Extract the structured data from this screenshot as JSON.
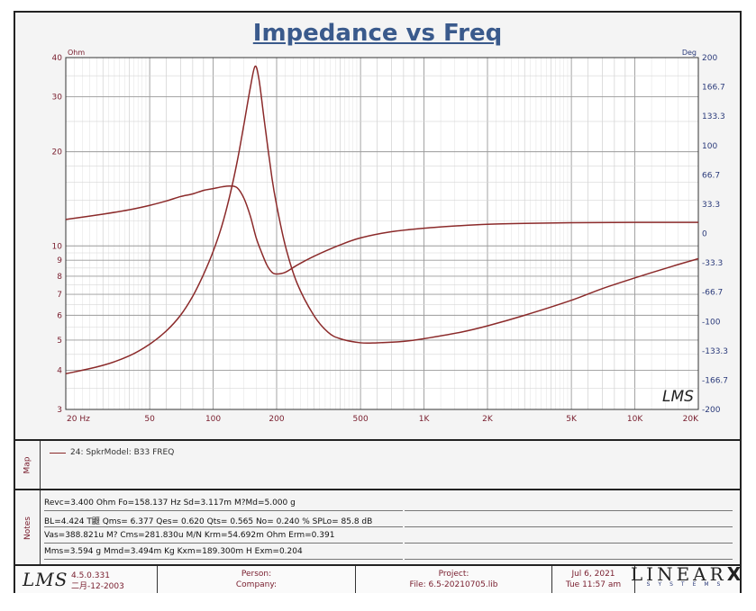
{
  "chart_data": {
    "type": "line",
    "title": "Impedance vs Freq",
    "x_scale": "log",
    "xlim": [
      20,
      20000
    ],
    "x_ticks": [
      {
        "value": 20,
        "label": "20  Hz"
      },
      {
        "value": 50,
        "label": "50"
      },
      {
        "value": 100,
        "label": "100"
      },
      {
        "value": 200,
        "label": "200"
      },
      {
        "value": 500,
        "label": "500"
      },
      {
        "value": 1000,
        "label": "1K"
      },
      {
        "value": 2000,
        "label": "2K"
      },
      {
        "value": 5000,
        "label": "5K"
      },
      {
        "value": 10000,
        "label": "10K"
      },
      {
        "value": 20000,
        "label": "20K"
      }
    ],
    "y_left": {
      "unit": "Ohm",
      "scale": "log",
      "range": [
        3,
        40
      ],
      "ticks": [
        {
          "value": 3,
          "label": "3"
        },
        {
          "value": 4,
          "label": "4"
        },
        {
          "value": 5,
          "label": "5"
        },
        {
          "value": 6,
          "label": "6"
        },
        {
          "value": 7,
          "label": "7"
        },
        {
          "value": 8,
          "label": "8"
        },
        {
          "value": 9,
          "label": "9"
        },
        {
          "value": 10,
          "label": "10"
        },
        {
          "value": 20,
          "label": "20"
        },
        {
          "value": 30,
          "label": "30"
        },
        {
          "value": 40,
          "label": "40"
        }
      ]
    },
    "y_right": {
      "unit": "Deg",
      "scale": "linear",
      "range": [
        -200,
        200
      ],
      "ticks": [
        {
          "value": 200,
          "label": "200"
        },
        {
          "value": 166.7,
          "label": "166.7"
        },
        {
          "value": 133.3,
          "label": "133.3"
        },
        {
          "value": 100,
          "label": "100"
        },
        {
          "value": 66.7,
          "label": "66.7"
        },
        {
          "value": 33.3,
          "label": "33.3"
        },
        {
          "value": 0,
          "label": "0"
        },
        {
          "value": -33.3,
          "label": "-33.3"
        },
        {
          "value": -66.7,
          "label": "-66.7"
        },
        {
          "value": -100,
          "label": "-100"
        },
        {
          "value": -133.3,
          "label": "-133.3"
        },
        {
          "value": -166.7,
          "label": "-166.7"
        },
        {
          "value": -200,
          "label": "-200"
        }
      ]
    },
    "series": [
      {
        "name": "Impedance",
        "axis": "left",
        "color": "#8b2a2a",
        "points": [
          [
            20,
            3.9
          ],
          [
            30,
            4.15
          ],
          [
            40,
            4.45
          ],
          [
            50,
            4.85
          ],
          [
            60,
            5.35
          ],
          [
            70,
            6.0
          ],
          [
            80,
            6.9
          ],
          [
            90,
            8.1
          ],
          [
            100,
            9.6
          ],
          [
            110,
            11.6
          ],
          [
            120,
            14.5
          ],
          [
            130,
            18.6
          ],
          [
            140,
            24.5
          ],
          [
            150,
            32.0
          ],
          [
            158,
            37.5
          ],
          [
            165,
            34.0
          ],
          [
            175,
            25.0
          ],
          [
            190,
            16.5
          ],
          [
            200,
            13.5
          ],
          [
            220,
            10.0
          ],
          [
            250,
            7.6
          ],
          [
            300,
            6.0
          ],
          [
            350,
            5.3
          ],
          [
            400,
            5.05
          ],
          [
            500,
            4.9
          ],
          [
            600,
            4.9
          ],
          [
            800,
            4.95
          ],
          [
            1000,
            5.05
          ],
          [
            1500,
            5.3
          ],
          [
            2000,
            5.55
          ],
          [
            3000,
            6.0
          ],
          [
            5000,
            6.7
          ],
          [
            7000,
            7.3
          ],
          [
            10000,
            7.9
          ],
          [
            15000,
            8.6
          ],
          [
            20000,
            9.1
          ]
        ]
      },
      {
        "name": "Phase",
        "axis": "right",
        "color": "#8b2a2a",
        "points": [
          [
            20,
            16
          ],
          [
            30,
            22
          ],
          [
            40,
            27
          ],
          [
            50,
            32
          ],
          [
            60,
            37
          ],
          [
            70,
            42
          ],
          [
            80,
            45
          ],
          [
            90,
            49
          ],
          [
            100,
            51
          ],
          [
            110,
            53
          ],
          [
            120,
            54
          ],
          [
            130,
            52
          ],
          [
            140,
            40
          ],
          [
            150,
            20
          ],
          [
            160,
            -5
          ],
          [
            170,
            -22
          ],
          [
            180,
            -36
          ],
          [
            190,
            -44
          ],
          [
            200,
            -46
          ],
          [
            220,
            -44
          ],
          [
            250,
            -36
          ],
          [
            300,
            -26
          ],
          [
            400,
            -13
          ],
          [
            500,
            -5
          ],
          [
            700,
            2
          ],
          [
            1000,
            6
          ],
          [
            1500,
            9
          ],
          [
            2000,
            10.5
          ],
          [
            3000,
            11.5
          ],
          [
            5000,
            12.3
          ],
          [
            10000,
            12.6
          ],
          [
            20000,
            12.7
          ]
        ]
      }
    ],
    "legend": [
      "24: SpkrModel: B33 FREQ"
    ],
    "watermark": "LMS"
  },
  "map": {
    "label": "Map",
    "entry": "24: SpkrModel: B33 FREQ"
  },
  "notes": {
    "label": "Notes",
    "lines": [
      "Revc=3.400 Ohm  Fo=158.137 Hz  Sd=3.117m M?Md=5.000 g",
      "BL=4.424 T鼴  Qms= 6.377  Qes= 0.620  Qts= 0.565  No= 0.240 %  SPLo= 85.8 dB",
      "Vas=388.821u M? Cms=281.830u M/N  Krm=54.692m Ohm  Erm=0.391",
      "Mms=3.594 g  Mmd=3.494m Kg  Kxm=189.300m H  Exm=0.204"
    ]
  },
  "footer": {
    "logo": "LMS",
    "version": "4.5.0.331",
    "date_built": "二月-12-2003",
    "person_label": "Person:",
    "company_label": "Company:",
    "project_label": "Project:",
    "file_label": "File: 6.5-20210705.lib",
    "date": "Jul  6, 2021",
    "time": "Tue 11:57 am",
    "brand_main": "LINEAR",
    "brand_x": "X",
    "brand_sub": "SYSTEMS"
  }
}
